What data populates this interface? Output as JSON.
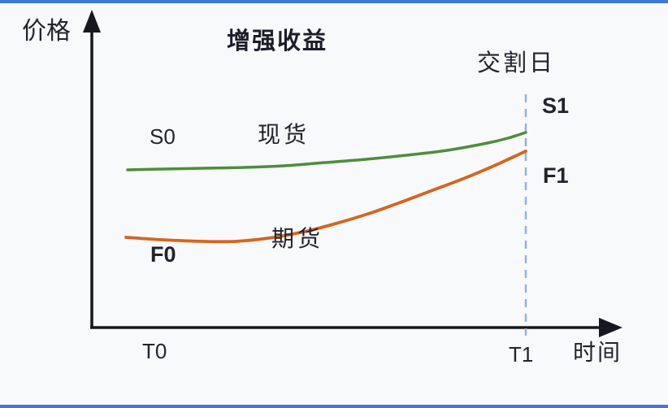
{
  "page": {
    "background_color": "#f8f9fb",
    "top_bar_color": "#3b7cd6",
    "bottom_bar_color": "#3b7cd6"
  },
  "chart": {
    "title": "增强收益",
    "y_axis_label": "价格",
    "x_axis_label": "时间",
    "delivery_day_label": "交割日",
    "spot_curve_label": "现货",
    "futures_curve_label": "期货",
    "point_labels": {
      "s0": "S0",
      "s1": "S1",
      "f0": "F0",
      "f1": "F1"
    },
    "x_tick_labels": {
      "t0": "T0",
      "t1": "T1"
    },
    "colors": {
      "spot_line": "#4e8c3e",
      "futures_line": "#d6641f",
      "delivery_dashed_line": "#8fb4e3",
      "axis": "#17171f",
      "text": "#23232e"
    }
  },
  "chart_data": {
    "type": "line",
    "title": "增强收益",
    "xlabel": "时间",
    "ylabel": "价格",
    "x_ticks": [
      "T0",
      "T1"
    ],
    "grid": false,
    "legend": "inline-labels",
    "note": "Conceptual chart, no numeric scale shown; t is normalized time from T0 (0) to T1/delivery (1), v is relative price in arbitrary units above the time axis.",
    "series": [
      {
        "name": "现货",
        "color": "#4e8c3e",
        "start_label": "S0",
        "end_label": "S1",
        "points": [
          {
            "t": 0.004,
            "v": 195
          },
          {
            "t": 0.091,
            "v": 196
          },
          {
            "t": 0.193,
            "v": 197
          },
          {
            "t": 0.295,
            "v": 198
          },
          {
            "t": 0.396,
            "v": 200
          },
          {
            "t": 0.498,
            "v": 204
          },
          {
            "t": 0.6,
            "v": 208
          },
          {
            "t": 0.701,
            "v": 213
          },
          {
            "t": 0.803,
            "v": 219
          },
          {
            "t": 0.904,
            "v": 228
          },
          {
            "t": 0.955,
            "v": 234
          },
          {
            "t": 1.0,
            "v": 241
          }
        ]
      },
      {
        "name": "期货",
        "color": "#d6641f",
        "start_label": "F0",
        "end_label": "F1",
        "points": [
          {
            "t": 0.0,
            "v": 112
          },
          {
            "t": 0.091,
            "v": 109
          },
          {
            "t": 0.193,
            "v": 107
          },
          {
            "t": 0.274,
            "v": 107
          },
          {
            "t": 0.356,
            "v": 111
          },
          {
            "t": 0.437,
            "v": 118
          },
          {
            "t": 0.518,
            "v": 128
          },
          {
            "t": 0.6,
            "v": 140
          },
          {
            "t": 0.681,
            "v": 154
          },
          {
            "t": 0.762,
            "v": 169
          },
          {
            "t": 0.843,
            "v": 184
          },
          {
            "t": 0.925,
            "v": 201
          },
          {
            "t": 1.0,
            "v": 218
          }
        ]
      }
    ],
    "annotations": [
      {
        "text": "交割日",
        "meaning": "delivery date, dashed vertical line at T1"
      },
      {
        "text": "S0",
        "attached_to": "spot start"
      },
      {
        "text": "S1",
        "attached_to": "spot end at T1"
      },
      {
        "text": "F0",
        "attached_to": "futures start"
      },
      {
        "text": "F1",
        "attached_to": "futures end at T1"
      }
    ]
  }
}
